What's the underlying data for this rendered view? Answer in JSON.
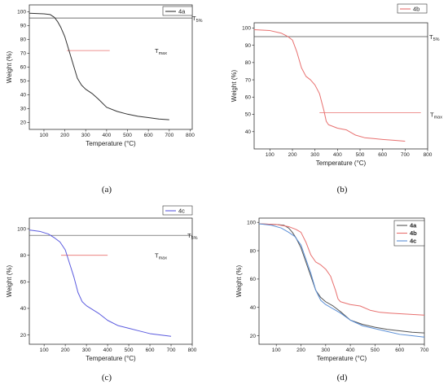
{
  "chart_data": [
    {
      "panel": "(a)",
      "type": "line",
      "xlabel": "Temperature (°C)",
      "ylabel": "Weight (%)",
      "xlim": [
        30,
        810
      ],
      "ylim": [
        15,
        105
      ],
      "xticks": [
        100,
        200,
        300,
        400,
        500,
        600,
        700,
        800
      ],
      "yticks": [
        20,
        30,
        40,
        50,
        60,
        70,
        80,
        90,
        100
      ],
      "legend": [
        "4a"
      ],
      "legend_position": "top-right",
      "annotations": {
        "t5": {
          "label": "T",
          "sub": "5%",
          "y": 95.5
        },
        "tmax": {
          "label": "T",
          "sub": "max",
          "y": 72,
          "x_from": 210,
          "x_to": 415
        }
      },
      "series": [
        {
          "name": "4a",
          "color": "#333333",
          "x": [
            30,
            100,
            130,
            150,
            165,
            180,
            200,
            220,
            240,
            260,
            280,
            300,
            330,
            360,
            400,
            450,
            500,
            550,
            600,
            650,
            700
          ],
          "y": [
            99,
            98.5,
            98,
            96,
            93,
            89,
            82,
            72,
            62,
            52,
            47,
            44,
            41,
            37,
            31,
            28,
            26,
            24.5,
            23.5,
            22.5,
            22
          ]
        }
      ]
    },
    {
      "panel": "(b)",
      "type": "line",
      "xlabel": "Temperature (°C)",
      "ylabel": "Weight (%)",
      "xlim": [
        30,
        800
      ],
      "ylim": [
        30,
        103
      ],
      "xticks": [
        100,
        200,
        300,
        400,
        500,
        600,
        700,
        800
      ],
      "yticks": [
        40,
        50,
        60,
        70,
        80,
        90,
        100
      ],
      "legend": [
        "4b"
      ],
      "legend_position": "top-right",
      "annotations": {
        "t5": {
          "label": "T",
          "sub": "5%",
          "y": 95
        },
        "tmax": {
          "label": "T",
          "sub": "max",
          "y": 51,
          "x_from": 320,
          "x_to": 770
        }
      },
      "series": [
        {
          "name": "4b",
          "color": "#e8706f",
          "x": [
            30,
            100,
            150,
            180,
            200,
            220,
            240,
            260,
            280,
            300,
            320,
            340,
            350,
            360,
            380,
            400,
            440,
            480,
            520,
            560,
            600,
            650,
            700
          ],
          "y": [
            99,
            98.5,
            97,
            95,
            93,
            86,
            77,
            72,
            70,
            67,
            62,
            52,
            46,
            44,
            43,
            42,
            41,
            38,
            36.5,
            36,
            35.5,
            35,
            34.5
          ]
        }
      ]
    },
    {
      "panel": "(c)",
      "type": "line",
      "xlabel": "Temperature (°C)",
      "ylabel": "Weight (%)",
      "xlim": [
        30,
        800
      ],
      "ylim": [
        13,
        108
      ],
      "xticks": [
        100,
        200,
        300,
        400,
        500,
        600,
        700,
        800
      ],
      "yticks": [
        20,
        40,
        60,
        80,
        100
      ],
      "legend": [
        "4c"
      ],
      "legend_position": "top-right",
      "annotations": {
        "t5": {
          "label": "T",
          "sub": "5%",
          "y": 95
        },
        "tmax": {
          "label": "T",
          "sub": "max",
          "y": 80,
          "x_from": 180,
          "x_to": 400
        }
      },
      "series": [
        {
          "name": "4c",
          "color": "#5b5bdf",
          "x": [
            30,
            80,
            120,
            150,
            175,
            200,
            220,
            240,
            260,
            280,
            300,
            330,
            360,
            400,
            450,
            500,
            550,
            600,
            650,
            700
          ],
          "y": [
            99,
            98,
            96,
            93,
            90,
            84,
            74,
            64,
            52,
            45,
            42,
            39,
            36,
            31,
            27,
            25,
            23,
            21,
            20,
            19
          ]
        }
      ]
    },
    {
      "panel": "(d)",
      "type": "line",
      "xlabel": "Temperature (°C)",
      "ylabel": "Weight (%)",
      "xlim": [
        30,
        700
      ],
      "ylim": [
        14,
        103
      ],
      "xticks": [
        100,
        200,
        300,
        400,
        500,
        600,
        700
      ],
      "yticks": [
        20,
        40,
        60,
        80,
        100
      ],
      "legend": [
        "4a",
        "4b",
        "4c"
      ],
      "legend_position": "top-right",
      "series": [
        {
          "name": "4a",
          "color": "#555555",
          "x": [
            30,
            100,
            130,
            150,
            165,
            180,
            200,
            220,
            240,
            260,
            280,
            300,
            330,
            360,
            400,
            450,
            500,
            550,
            600,
            650,
            700
          ],
          "y": [
            99,
            98.5,
            98,
            96,
            93,
            89,
            82,
            72,
            62,
            52,
            47,
            44,
            41,
            37,
            31,
            28,
            26,
            24.5,
            23.5,
            22.5,
            22
          ]
        },
        {
          "name": "4b",
          "color": "#e8706f",
          "x": [
            30,
            100,
            150,
            180,
            200,
            220,
            240,
            260,
            280,
            300,
            320,
            340,
            350,
            360,
            380,
            400,
            440,
            480,
            520,
            560,
            600,
            650,
            700
          ],
          "y": [
            99,
            98.5,
            97,
            95,
            93,
            86,
            77,
            72,
            70,
            67,
            62,
            52,
            46,
            44,
            43,
            42,
            41,
            38,
            36.5,
            36,
            35.5,
            35,
            34.5
          ]
        },
        {
          "name": "4c",
          "color": "#5b8fd6",
          "x": [
            30,
            80,
            120,
            150,
            175,
            200,
            220,
            240,
            260,
            280,
            300,
            330,
            360,
            400,
            450,
            500,
            550,
            600,
            650,
            700
          ],
          "y": [
            99,
            98,
            96,
            93,
            90,
            84,
            74,
            64,
            52,
            45,
            42,
            39,
            36,
            31,
            27,
            25,
            23,
            21,
            20,
            19
          ]
        }
      ]
    }
  ]
}
